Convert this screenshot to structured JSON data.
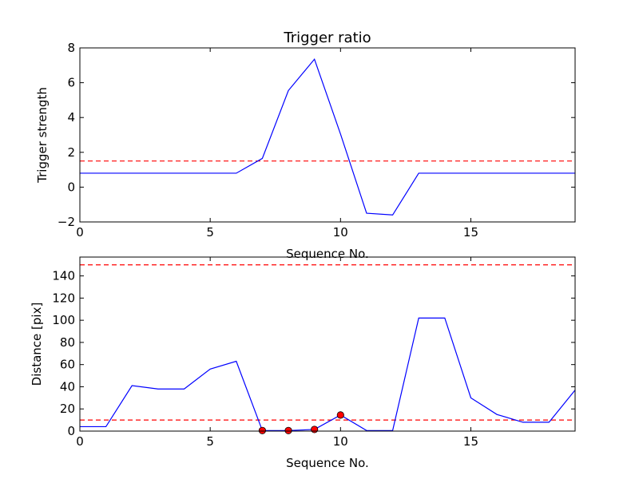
{
  "chart_data": [
    {
      "type": "line",
      "title": "Trigger ratio",
      "xlabel": "Sequence No.",
      "ylabel": "Trigger strength",
      "xlim": [
        0,
        19
      ],
      "ylim": [
        -2,
        8
      ],
      "xticks": [
        "0",
        "5",
        "10",
        "15"
      ],
      "yticks": [
        "−2",
        "0",
        "2",
        "4",
        "6",
        "8"
      ],
      "grid": false,
      "series": [
        {
          "color": "#0000ff",
          "x": [
            0,
            1,
            2,
            3,
            4,
            5,
            6,
            7,
            8,
            9,
            10,
            11,
            12,
            13,
            14,
            15,
            16,
            17,
            18,
            19
          ],
          "y": [
            0.8,
            0.8,
            0.8,
            0.8,
            0.8,
            0.8,
            0.8,
            1.65,
            5.55,
            7.35,
            3.05,
            -1.5,
            -1.6,
            0.8,
            0.8,
            0.8,
            0.8,
            0.8,
            0.8,
            0.8
          ]
        }
      ],
      "hlines": [
        {
          "y": 1.5,
          "color": "#ff0000",
          "style": "dashed"
        }
      ]
    },
    {
      "type": "line",
      "title": "",
      "xlabel": "Sequence No.",
      "ylabel": "Distance [pix]",
      "xlim": [
        0,
        19
      ],
      "ylim": [
        0,
        157
      ],
      "xticks": [
        "0",
        "5",
        "10",
        "15"
      ],
      "yticks": [
        "0",
        "20",
        "40",
        "60",
        "80",
        "100",
        "120",
        "140"
      ],
      "grid": false,
      "series": [
        {
          "color": "#0000ff",
          "x": [
            0,
            1,
            2,
            3,
            4,
            5,
            6,
            7,
            8,
            9,
            10,
            11,
            12,
            13,
            14,
            15,
            16,
            17,
            18,
            19
          ],
          "y": [
            4,
            4,
            41,
            38,
            38,
            56,
            63,
            0.5,
            0.5,
            1.5,
            14.5,
            0.5,
            0.5,
            102,
            102,
            30,
            15,
            8,
            8,
            37
          ]
        }
      ],
      "markers": {
        "color": "#ff0000",
        "x": [
          7,
          8,
          9,
          10
        ],
        "y": [
          0.5,
          0.5,
          1.5,
          14.5
        ]
      },
      "hlines": [
        {
          "y": 150,
          "color": "#ff0000",
          "style": "dashed"
        },
        {
          "y": 10,
          "color": "#ff0000",
          "style": "dashed"
        }
      ]
    }
  ]
}
